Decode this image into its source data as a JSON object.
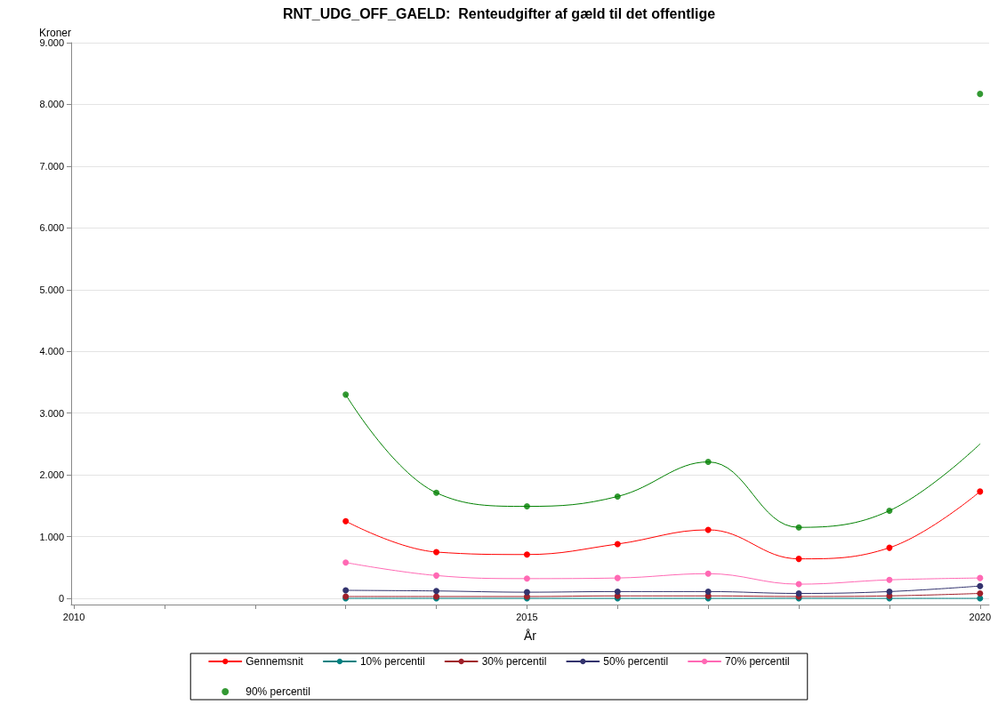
{
  "chart_data": {
    "type": "line",
    "title": "RNT_UDG_OFF_GAELD:  Renteudgifter af gæld til det offentlige",
    "xlabel": "År",
    "ylabel": "Kroner",
    "x": [
      2013,
      2014,
      2015,
      2016,
      2017,
      2018,
      2019,
      2020
    ],
    "xlim": [
      2009.97,
      2020.1
    ],
    "xticks": [
      2010,
      {
        "value": 2011,
        "label": null
      },
      {
        "value": 2012,
        "label": null
      },
      {
        "value": 2013,
        "label": null
      },
      {
        "value": 2014,
        "label": null
      },
      2015,
      {
        "value": 2016,
        "label": null
      },
      {
        "value": 2017,
        "label": null
      },
      {
        "value": 2018,
        "label": null
      },
      {
        "value": 2019,
        "label": null
      },
      2020
    ],
    "ylim": [
      -100,
      9000
    ],
    "yticks": [
      {
        "value": 0,
        "label": "0"
      },
      {
        "value": 1000,
        "label": "1.000"
      },
      {
        "value": 2000,
        "label": "2.000"
      },
      {
        "value": 3000,
        "label": "3.000"
      },
      {
        "value": 4000,
        "label": "4.000"
      },
      {
        "value": 5000,
        "label": "5.000"
      },
      {
        "value": 6000,
        "label": "6.000"
      },
      {
        "value": 7000,
        "label": "7.000"
      },
      {
        "value": 8000,
        "label": "8.000"
      },
      {
        "value": 9000,
        "label": "9.000"
      }
    ],
    "series": [
      {
        "name": "Gennemsnit",
        "color": "#ff0000",
        "values": [
          1250,
          750,
          710,
          880,
          1110,
          640,
          820,
          1730
        ]
      },
      {
        "name": "10% percentil",
        "color": "#008080",
        "values": [
          0,
          0,
          0,
          0,
          0,
          0,
          0,
          0
        ]
      },
      {
        "name": "30% percentil",
        "color": "#a0202a",
        "values": [
          30,
          30,
          30,
          40,
          40,
          30,
          40,
          80
        ]
      },
      {
        "name": "50% percentil",
        "color": "#33336e",
        "values": [
          130,
          120,
          100,
          110,
          110,
          80,
          110,
          200
        ]
      },
      {
        "name": "70% percentil",
        "color": "#ff69b4",
        "values": [
          580,
          370,
          320,
          330,
          400,
          230,
          300,
          330
        ]
      },
      {
        "name": "90% percentil",
        "type": "scatter",
        "color": "#008000",
        "values": [
          3300,
          1710,
          1490,
          1650,
          2210,
          1150,
          1420,
          8170
        ]
      },
      {
        "type": "line",
        "color": "#008000",
        "marker": "none",
        "x": [
          2013,
          2014,
          2015,
          2016,
          2017,
          2018,
          2019,
          2020
        ],
        "values": [
          3300,
          1710,
          1490,
          1650,
          2210,
          1150,
          1420,
          2500
        ]
      }
    ],
    "marker": "circle",
    "line_style": "solid",
    "grid": "y",
    "legend": "bottom"
  }
}
